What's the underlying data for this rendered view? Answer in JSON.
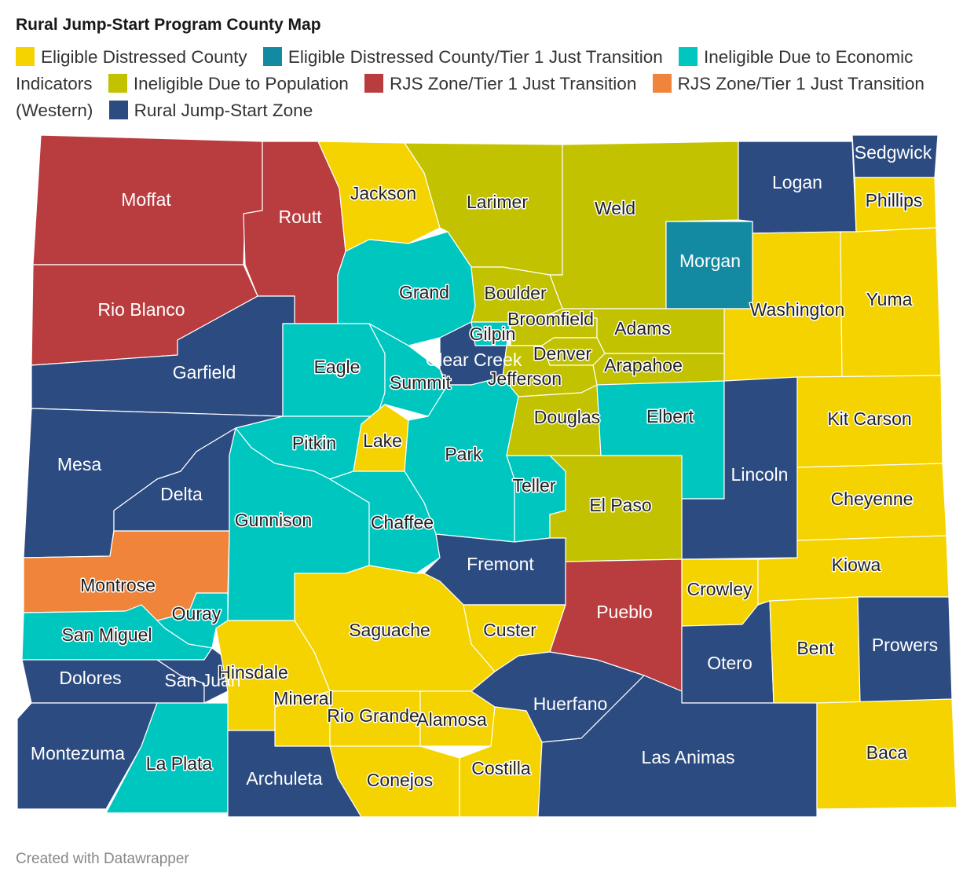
{
  "title": "Rural Jump-Start Program County Map",
  "footer": "Created with Datawrapper",
  "categories": {
    "ed": {
      "label": "Eligible Distressed County",
      "color": "#f5d300"
    },
    "edt": {
      "label": "Eligible Distressed County/Tier 1 Just Transition",
      "color": "#138aa1"
    },
    "iei": {
      "label": "Ineligible Due to Economic Indicators",
      "color": "#00c6c0"
    },
    "ipo": {
      "label": "Ineligible Due to Population",
      "color": "#c2c200"
    },
    "rjt": {
      "label": "RJS Zone/Tier 1 Just Transition",
      "color": "#b93c3f"
    },
    "rjw": {
      "label": "RJS Zone/Tier 1 Just Transition (Western)",
      "color": "#ef843a"
    },
    "rjs": {
      "label": "Rural Jump-Start Zone",
      "color": "#2c4b80"
    }
  },
  "legend_order": [
    "ed",
    "edt",
    "iei",
    "ipo",
    "rjt",
    "rjw",
    "rjs"
  ],
  "counties": {
    "moffat": {
      "name": "Moffat",
      "cat": "rjt"
    },
    "routt": {
      "name": "Routt",
      "cat": "rjt"
    },
    "jackson": {
      "name": "Jackson",
      "cat": "ed"
    },
    "larimer": {
      "name": "Larimer",
      "cat": "ipo"
    },
    "weld": {
      "name": "Weld",
      "cat": "ipo"
    },
    "logan": {
      "name": "Logan",
      "cat": "rjs"
    },
    "sedgwick": {
      "name": "Sedgwick",
      "cat": "rjs"
    },
    "phillips": {
      "name": "Phillips",
      "cat": "ed"
    },
    "rioblanco": {
      "name": "Rio Blanco",
      "cat": "rjt"
    },
    "garfield": {
      "name": "Garfield",
      "cat": "rjs"
    },
    "grand": {
      "name": "Grand",
      "cat": "iei"
    },
    "boulder": {
      "name": "Boulder",
      "cat": "ipo"
    },
    "morgan": {
      "name": "Morgan",
      "cat": "edt"
    },
    "washington": {
      "name": "Washington",
      "cat": "ed"
    },
    "yuma": {
      "name": "Yuma",
      "cat": "ed"
    },
    "eagle": {
      "name": "Eagle",
      "cat": "iei"
    },
    "summit": {
      "name": "Summit",
      "cat": "iei"
    },
    "gilpin": {
      "name": "Gilpin",
      "cat": "iei"
    },
    "clearcreek": {
      "name": "Clear Creek",
      "cat": "rjs"
    },
    "broomfield": {
      "name": "Broomfield",
      "cat": "ipo"
    },
    "adams": {
      "name": "Adams",
      "cat": "ipo"
    },
    "denver": {
      "name": "Denver",
      "cat": "ipo"
    },
    "arapahoe": {
      "name": "Arapahoe",
      "cat": "ipo"
    },
    "jefferson": {
      "name": "Jefferson",
      "cat": "ipo"
    },
    "mesa": {
      "name": "Mesa",
      "cat": "rjs"
    },
    "delta": {
      "name": "Delta",
      "cat": "rjs"
    },
    "pitkin": {
      "name": "Pitkin",
      "cat": "iei"
    },
    "lake": {
      "name": "Lake",
      "cat": "ed"
    },
    "park": {
      "name": "Park",
      "cat": "iei"
    },
    "douglas": {
      "name": "Douglas",
      "cat": "ipo"
    },
    "elbert": {
      "name": "Elbert",
      "cat": "iei"
    },
    "lincoln": {
      "name": "Lincoln",
      "cat": "rjs"
    },
    "kitcarson": {
      "name": "Kit Carson",
      "cat": "ed"
    },
    "cheyenne": {
      "name": "Cheyenne",
      "cat": "ed"
    },
    "gunnison": {
      "name": "Gunnison",
      "cat": "iei"
    },
    "chaffee": {
      "name": "Chaffee",
      "cat": "iei"
    },
    "teller": {
      "name": "Teller",
      "cat": "iei"
    },
    "elpaso": {
      "name": "El Paso",
      "cat": "ipo"
    },
    "fremont": {
      "name": "Fremont",
      "cat": "rjs"
    },
    "montrose": {
      "name": "Montrose",
      "cat": "rjw"
    },
    "ouray": {
      "name": "Ouray",
      "cat": "iei"
    },
    "sanmiguel": {
      "name": "San Miguel",
      "cat": "iei"
    },
    "saguache": {
      "name": "Saguache",
      "cat": "ed"
    },
    "custer": {
      "name": "Custer",
      "cat": "ed"
    },
    "pueblo": {
      "name": "Pueblo",
      "cat": "rjt"
    },
    "crowley": {
      "name": "Crowley",
      "cat": "ed"
    },
    "kiowa": {
      "name": "Kiowa",
      "cat": "ed"
    },
    "otero": {
      "name": "Otero",
      "cat": "rjs"
    },
    "bent": {
      "name": "Bent",
      "cat": "ed"
    },
    "prowers": {
      "name": "Prowers",
      "cat": "rjs"
    },
    "dolores": {
      "name": "Dolores",
      "cat": "rjs"
    },
    "sanjuan": {
      "name": "San Juan",
      "cat": "rjs"
    },
    "hinsdale": {
      "name": "Hinsdale",
      "cat": "ed"
    },
    "mineral": {
      "name": "Mineral",
      "cat": "ed"
    },
    "riogrande": {
      "name": "Rio Grande",
      "cat": "ed"
    },
    "alamosa": {
      "name": "Alamosa",
      "cat": "ed"
    },
    "huerfano": {
      "name": "Huerfano",
      "cat": "rjs"
    },
    "montezuma": {
      "name": "Montezuma",
      "cat": "rjs"
    },
    "laplata": {
      "name": "La Plata",
      "cat": "iei"
    },
    "archuleta": {
      "name": "Archuleta",
      "cat": "rjs"
    },
    "conejos": {
      "name": "Conejos",
      "cat": "ed"
    },
    "costilla": {
      "name": "Costilla",
      "cat": "ed"
    },
    "lasanimas": {
      "name": "Las Animas",
      "cat": "rjs"
    },
    "baca": {
      "name": "Baca",
      "cat": "ed"
    }
  }
}
